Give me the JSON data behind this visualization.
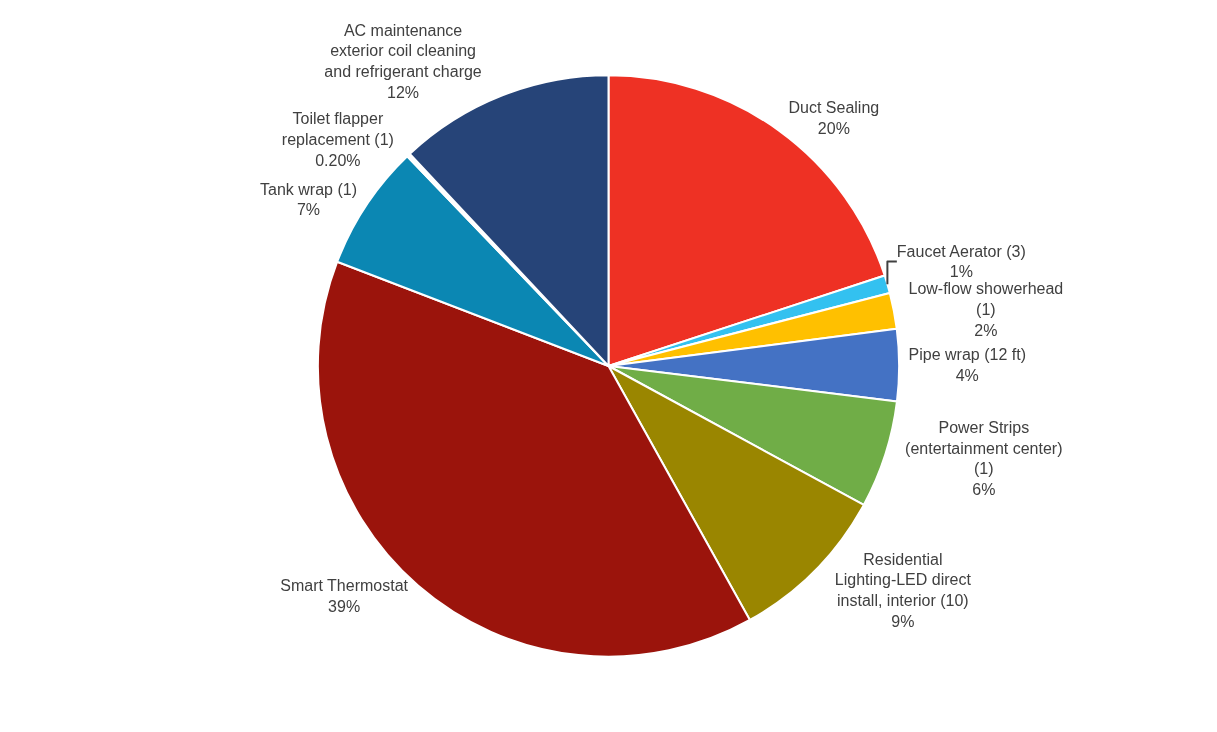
{
  "chart_data": {
    "type": "pie",
    "categories": [
      "Duct Sealing",
      "Faucet Aerator (3)",
      "Low-flow showerhead (1)",
      "Pipe wrap (12 ft)",
      "Power Strips (entertainment center) (1)",
      "Residential Lighting-LED direct install, interior (10)",
      "Smart Thermostat",
      "Tank wrap (1)",
      "Toilet flapper replacement (1)",
      "AC maintenance exterior coil cleaning and refrigerant charge"
    ],
    "values": [
      20,
      1,
      2,
      4,
      6,
      9,
      39,
      7,
      0.2,
      12
    ],
    "value_labels": [
      "20%",
      "1%",
      "2%",
      "4%",
      "6%",
      "9%",
      "39%",
      "7%",
      "0.20%",
      "12%"
    ],
    "colors": [
      "#ee3124",
      "#33c1f0",
      "#ffc000",
      "#4472c4",
      "#70ad47",
      "#9a8600",
      "#9b140c",
      "#0b87b3",
      "#ffffff",
      "#264478"
    ],
    "legend": false
  }
}
